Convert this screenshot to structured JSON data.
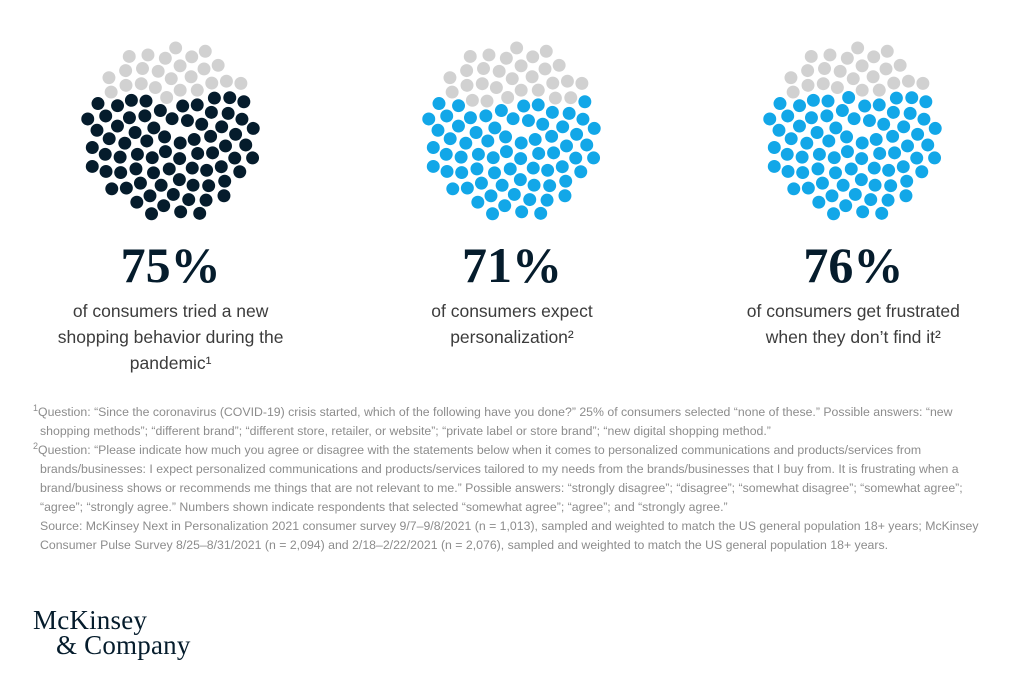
{
  "chart_data": [
    {
      "type": "pie",
      "variant": "phyllotaxis-dot-waffle",
      "label": "75%",
      "value": 75,
      "remainder": 25,
      "total_dots": 100,
      "unit": "%",
      "fill_color": "#051c2c",
      "remainder_color": "#d1d1d1",
      "caption": "of consumers tried a new shopping behavior during the pandemic¹",
      "legend_position": "none",
      "grid": false
    },
    {
      "type": "pie",
      "variant": "phyllotaxis-dot-waffle",
      "label": "71%",
      "value": 71,
      "remainder": 29,
      "total_dots": 100,
      "unit": "%",
      "fill_color": "#12a7e8",
      "remainder_color": "#d1d1d1",
      "caption": "of consumers expect personalization²",
      "legend_position": "none",
      "grid": false
    },
    {
      "type": "pie",
      "variant": "phyllotaxis-dot-waffle",
      "label": "76%",
      "value": 76,
      "remainder": 24,
      "total_dots": 100,
      "unit": "%",
      "fill_color": "#12a7e8",
      "remainder_color": "#d1d1d1",
      "caption": "of consumers get frustrated when they don’t find it²",
      "legend_position": "none",
      "grid": false
    }
  ],
  "footnotes": [
    {
      "marker": "1",
      "text": "Question: “Since the coronavirus (COVID-19) crisis started, which of the following have you done?” 25% of consumers selected “none of these.” Possible answers: “new shopping methods”; “different brand”; “different store, retailer, or website”; “private label or store brand”; “new digital shopping method.”"
    },
    {
      "marker": "2",
      "text": "Question: “Please indicate how much you agree or disagree with the statements below when it comes to personalized communications and products/services from brands/businesses: I expect personalized communications and products/services tailored to my needs from the brands/businesses that I buy from. It is frustrating when a brand/business shows or recommends me things that are not relevant to me.” Possible answers: “strongly disagree”; “disagree”; “somewhat disagree”; “somewhat agree”; “agree”; “strongly agree.” Numbers shown indicate respondents that selected “somewhat agree”; “agree”; and “strongly agree.”"
    }
  ],
  "source": "Source: McKinsey Next in Personalization 2021 consumer survey 9/7–9/8/2021 (n = 1,013), sampled and weighted to match the US general population 18+ years; McKinsey Consumer Pulse Survey 8/25–8/31/2021 (n = 2,094) and 2/18–2/22/2021 (n = 2,076), sampled and weighted to match the US general population 18+ years.",
  "logo": {
    "line1": "McKinsey",
    "line2": "& Company"
  }
}
